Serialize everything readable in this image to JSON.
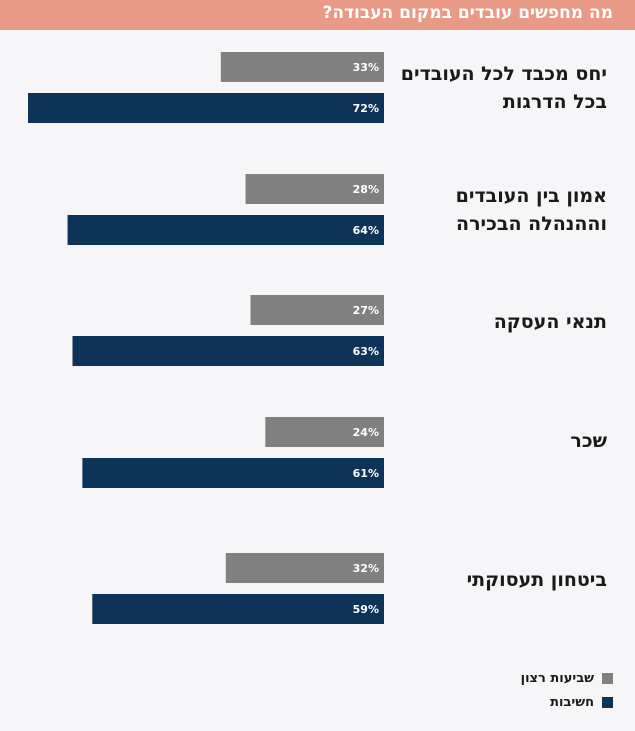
{
  "chart_data": {
    "type": "bar",
    "orientation": "horizontal",
    "title": "מה מחפשים עובדים במקום העבודה?",
    "categories": [
      "יחס מכבד לכל העובדים בכל הדרגות",
      "אמון בין העובדים וההנהלה הבכירה",
      "תנאי העסקה",
      "שכר",
      "ביטחון תעסוקתי"
    ],
    "series": [
      {
        "name": "שביעות רצון",
        "color": "#808080",
        "values": [
          33,
          28,
          27,
          24,
          32
        ],
        "labels": [
          "33%",
          "28%",
          "27%",
          "24%",
          "32%"
        ]
      },
      {
        "name": "חשיבות",
        "color": "#0e3358",
        "values": [
          72,
          64,
          63,
          61,
          59
        ],
        "labels": [
          "72%",
          "64%",
          "63%",
          "61%",
          "59%"
        ]
      }
    ],
    "xlim": [
      0,
      100
    ],
    "grid": false,
    "legend": "bottom-right"
  }
}
